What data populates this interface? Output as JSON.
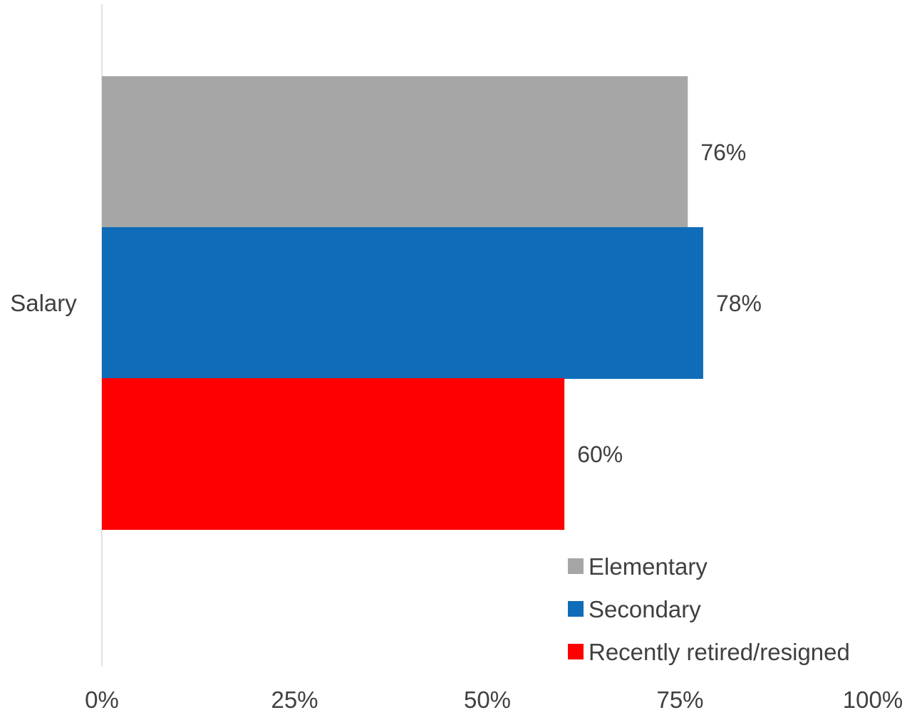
{
  "chart_data": {
    "type": "bar",
    "orientation": "horizontal",
    "categories": [
      "Salary"
    ],
    "series": [
      {
        "name": "Elementary",
        "values": [
          76
        ],
        "label": "76%",
        "color": "#a6a6a6"
      },
      {
        "name": "Secondary",
        "values": [
          78
        ],
        "label": "78%",
        "color": "#0f6cb8"
      },
      {
        "name": "Recently retired/resigned",
        "values": [
          60
        ],
        "label": "60%",
        "color": "#ff0000"
      }
    ],
    "x_axis": {
      "ticks": [
        0,
        25,
        50,
        75,
        100
      ],
      "tick_labels": [
        "0%",
        "25%",
        "50%",
        "75%",
        "100%"
      ],
      "xlim": [
        0,
        100
      ]
    },
    "grid": false,
    "legend_position": "bottom-right"
  }
}
